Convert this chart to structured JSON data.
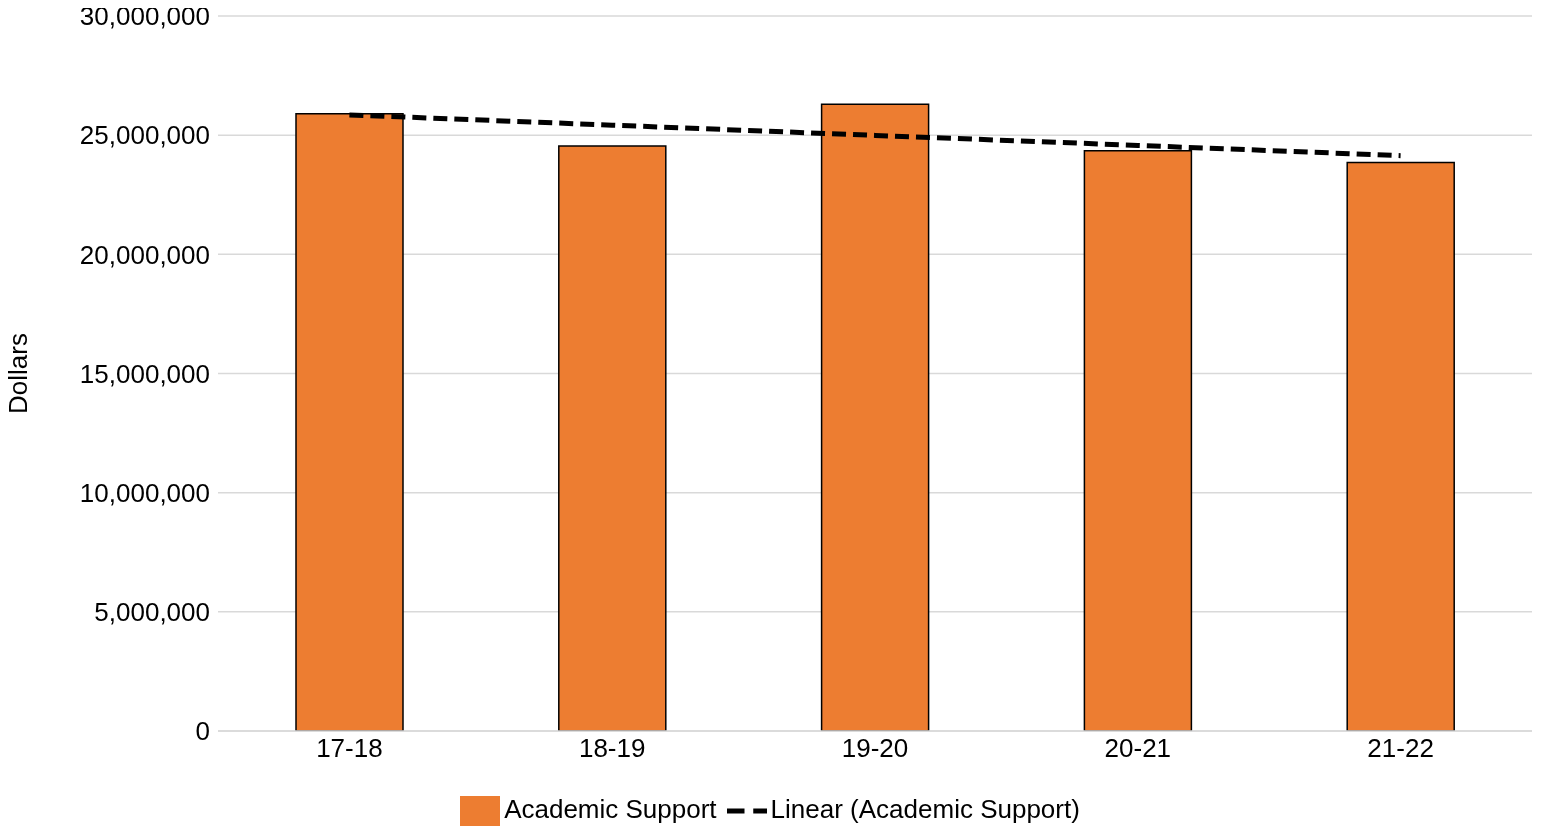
{
  "chart_data": {
    "type": "bar",
    "ylabel": "Dollars",
    "categories": [
      "17-18",
      "18-19",
      "19-20",
      "20-21",
      "21-22"
    ],
    "series": [
      {
        "name": "Academic Support",
        "color": "#ed7d31",
        "values": [
          25900000,
          24550000,
          26300000,
          24350000,
          23850000
        ]
      },
      {
        "type": "line",
        "name": "Linear (Academic Support)",
        "color": "#000000",
        "line_style": "dashed",
        "marker": "none",
        "values": [
          25850000,
          25420000,
          24990000,
          24570000,
          24140000
        ]
      }
    ],
    "ylim": [
      0,
      30000000
    ],
    "yticks": [
      {
        "value": 0,
        "label": "0"
      },
      {
        "value": 5000000,
        "label": "5,000,000"
      },
      {
        "value": 10000000,
        "label": "10,000,000"
      },
      {
        "value": 15000000,
        "label": "15,000,000"
      },
      {
        "value": 20000000,
        "label": "20,000,000"
      },
      {
        "value": 25000000,
        "label": "25,000,000"
      },
      {
        "value": 30000000,
        "label": "30,000,000"
      }
    ],
    "grid": "y",
    "legend": "bottom"
  }
}
